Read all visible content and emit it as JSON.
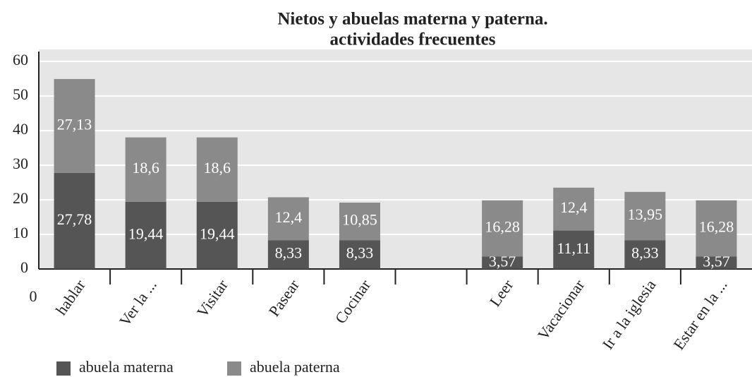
{
  "chart_data": {
    "type": "stacked_bar",
    "title": [
      "Nietos y abuelas materna y paterna.",
      "actividades frecuentes"
    ],
    "corner_label": "0",
    "categories": [
      "hablar",
      "Ver la ...",
      "Visitar",
      "Pasear",
      "Cocinar",
      null,
      "Leer",
      "Vacacionar",
      "Ir a la iglesia",
      "Estar en la ..."
    ],
    "series": [
      {
        "name": "abuela materna",
        "color": "#555555",
        "values": [
          27.78,
          19.44,
          19.44,
          8.33,
          8.33,
          null,
          3.57,
          11.11,
          8.33,
          3.57
        ],
        "value_labels": [
          "27,78",
          "19,44",
          "19,44",
          "8,33",
          "8,33",
          null,
          "3,57",
          "11,11",
          "8,33",
          "3,57"
        ]
      },
      {
        "name": "abuela paterna",
        "color": "#8a8a8a",
        "values": [
          27.13,
          18.6,
          18.6,
          12.4,
          10.85,
          null,
          16.28,
          12.4,
          13.95,
          16.28
        ],
        "value_labels": [
          "27,13",
          "18,6",
          "18,6",
          "12,4",
          "10,85",
          null,
          "16,28",
          "12,4",
          "13,95",
          "16,28"
        ]
      }
    ],
    "ylim": [
      0,
      60
    ],
    "yticks": [
      0,
      10,
      20,
      30,
      40,
      50,
      60
    ],
    "grid": true,
    "legend": "bottom"
  }
}
